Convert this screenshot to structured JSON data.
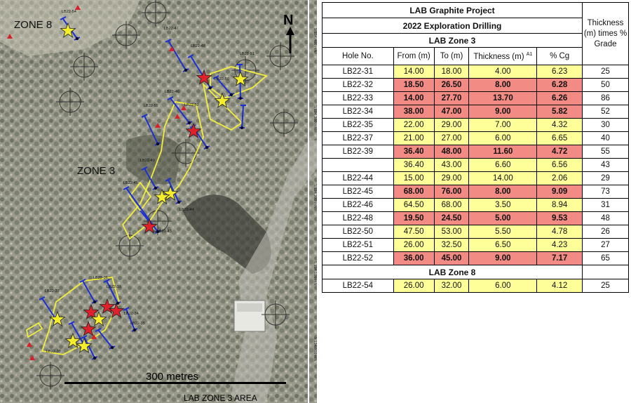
{
  "map": {
    "zone8_label": "ZONE 8",
    "zone3_label": "ZONE 3",
    "north_label": "N",
    "scale_label": "300 metres",
    "area_label": "LAB ZONE 3 AREA",
    "northings": [
      "5,134,400 mN",
      "5,134,300 mN",
      "5,134,200 mN",
      "5,134,100 mN",
      "5,134,000 mN"
    ],
    "hole_labels": [
      "LB22-54",
      "LB22-47",
      "LB22-48",
      "LB22-51",
      "LB22-50",
      "LB22-46",
      "LB22-55",
      "LB22-52",
      "LB22-49",
      "LB22-44",
      "LB22-45",
      "LB22-43",
      "LB22-37",
      "LB22-36",
      "LB22-33",
      "LB22-34",
      "LB22-35",
      "LB22-38"
    ],
    "colors": {
      "red_star": "#e0202a",
      "yellow_star": "#f6ee2a",
      "drill_trace": "#1a2fd6",
      "outline": "#f2ee3a",
      "collar": "#0a0a2a"
    }
  },
  "table": {
    "title1": "LAB Graphite Project",
    "title2": "2022 Exploration Drilling",
    "zone3_header": "LAB Zone 3",
    "zone8_header": "LAB Zone 8",
    "thickness_grade_header": "Thickness (m) times % Grade",
    "columns": [
      "Hole No.",
      "From (m)",
      "To (m)",
      "Thickness (m)",
      "% Cg"
    ],
    "thickness_sup": "A1",
    "zone3_rows": [
      {
        "hole": "LB22-31",
        "from": "14.00",
        "to": "18.00",
        "thk": "4.00",
        "cg": "6.23",
        "tg": "25",
        "hl": false
      },
      {
        "hole": "LB22-32",
        "from": "18.50",
        "to": "26.50",
        "thk": "8.00",
        "cg": "6.28",
        "tg": "50",
        "hl": true
      },
      {
        "hole": "LB22-33",
        "from": "14.00",
        "to": "27.70",
        "thk": "13.70",
        "cg": "6.26",
        "tg": "86",
        "hl": true
      },
      {
        "hole": "LB22-34",
        "from": "38.00",
        "to": "47.00",
        "thk": "9.00",
        "cg": "5.82",
        "tg": "52",
        "hl": true
      },
      {
        "hole": "LB22-35",
        "from": "22.00",
        "to": "29.00",
        "thk": "7.00",
        "cg": "4.32",
        "tg": "30",
        "hl": false
      },
      {
        "hole": "LB22-37",
        "from": "21.00",
        "to": "27.00",
        "thk": "6.00",
        "cg": "6.65",
        "tg": "40",
        "hl": false
      },
      {
        "hole": "LB22-39",
        "from": "36.40",
        "to": "48.00",
        "thk": "11.60",
        "cg": "4.72",
        "tg": "55",
        "hl": true
      },
      {
        "hole": "",
        "from": "36.40",
        "to": "43.00",
        "thk": "6.60",
        "cg": "6.56",
        "tg": "43",
        "hl": false
      },
      {
        "hole": "LB22-44",
        "from": "15.00",
        "to": "29.00",
        "thk": "14.00",
        "cg": "2.06",
        "tg": "29",
        "hl": false
      },
      {
        "hole": "LB22-45",
        "from": "68.00",
        "to": "76.00",
        "thk": "8.00",
        "cg": "9.09",
        "tg": "73",
        "hl": true
      },
      {
        "hole": "LB22-46",
        "from": "64.50",
        "to": "68.00",
        "thk": "3.50",
        "cg": "8.94",
        "tg": "31",
        "hl": false
      },
      {
        "hole": "LB22-48",
        "from": "19.50",
        "to": "24.50",
        "thk": "5.00",
        "cg": "9.53",
        "tg": "48",
        "hl": true
      },
      {
        "hole": "LB22-50",
        "from": "47.50",
        "to": "53.00",
        "thk": "5.50",
        "cg": "4.78",
        "tg": "26",
        "hl": false
      },
      {
        "hole": "LB22-51",
        "from": "26.00",
        "to": "32.50",
        "thk": "6.50",
        "cg": "4.23",
        "tg": "27",
        "hl": false
      },
      {
        "hole": "LB22-52",
        "from": "36.00",
        "to": "45.00",
        "thk": "9.00",
        "cg": "7.17",
        "tg": "65",
        "hl": true
      }
    ],
    "zone8_rows": [
      {
        "hole": "LB22-54",
        "from": "26.00",
        "to": "32.00",
        "thk": "6.00",
        "cg": "4.12",
        "tg": "25",
        "hl": false
      }
    ]
  }
}
